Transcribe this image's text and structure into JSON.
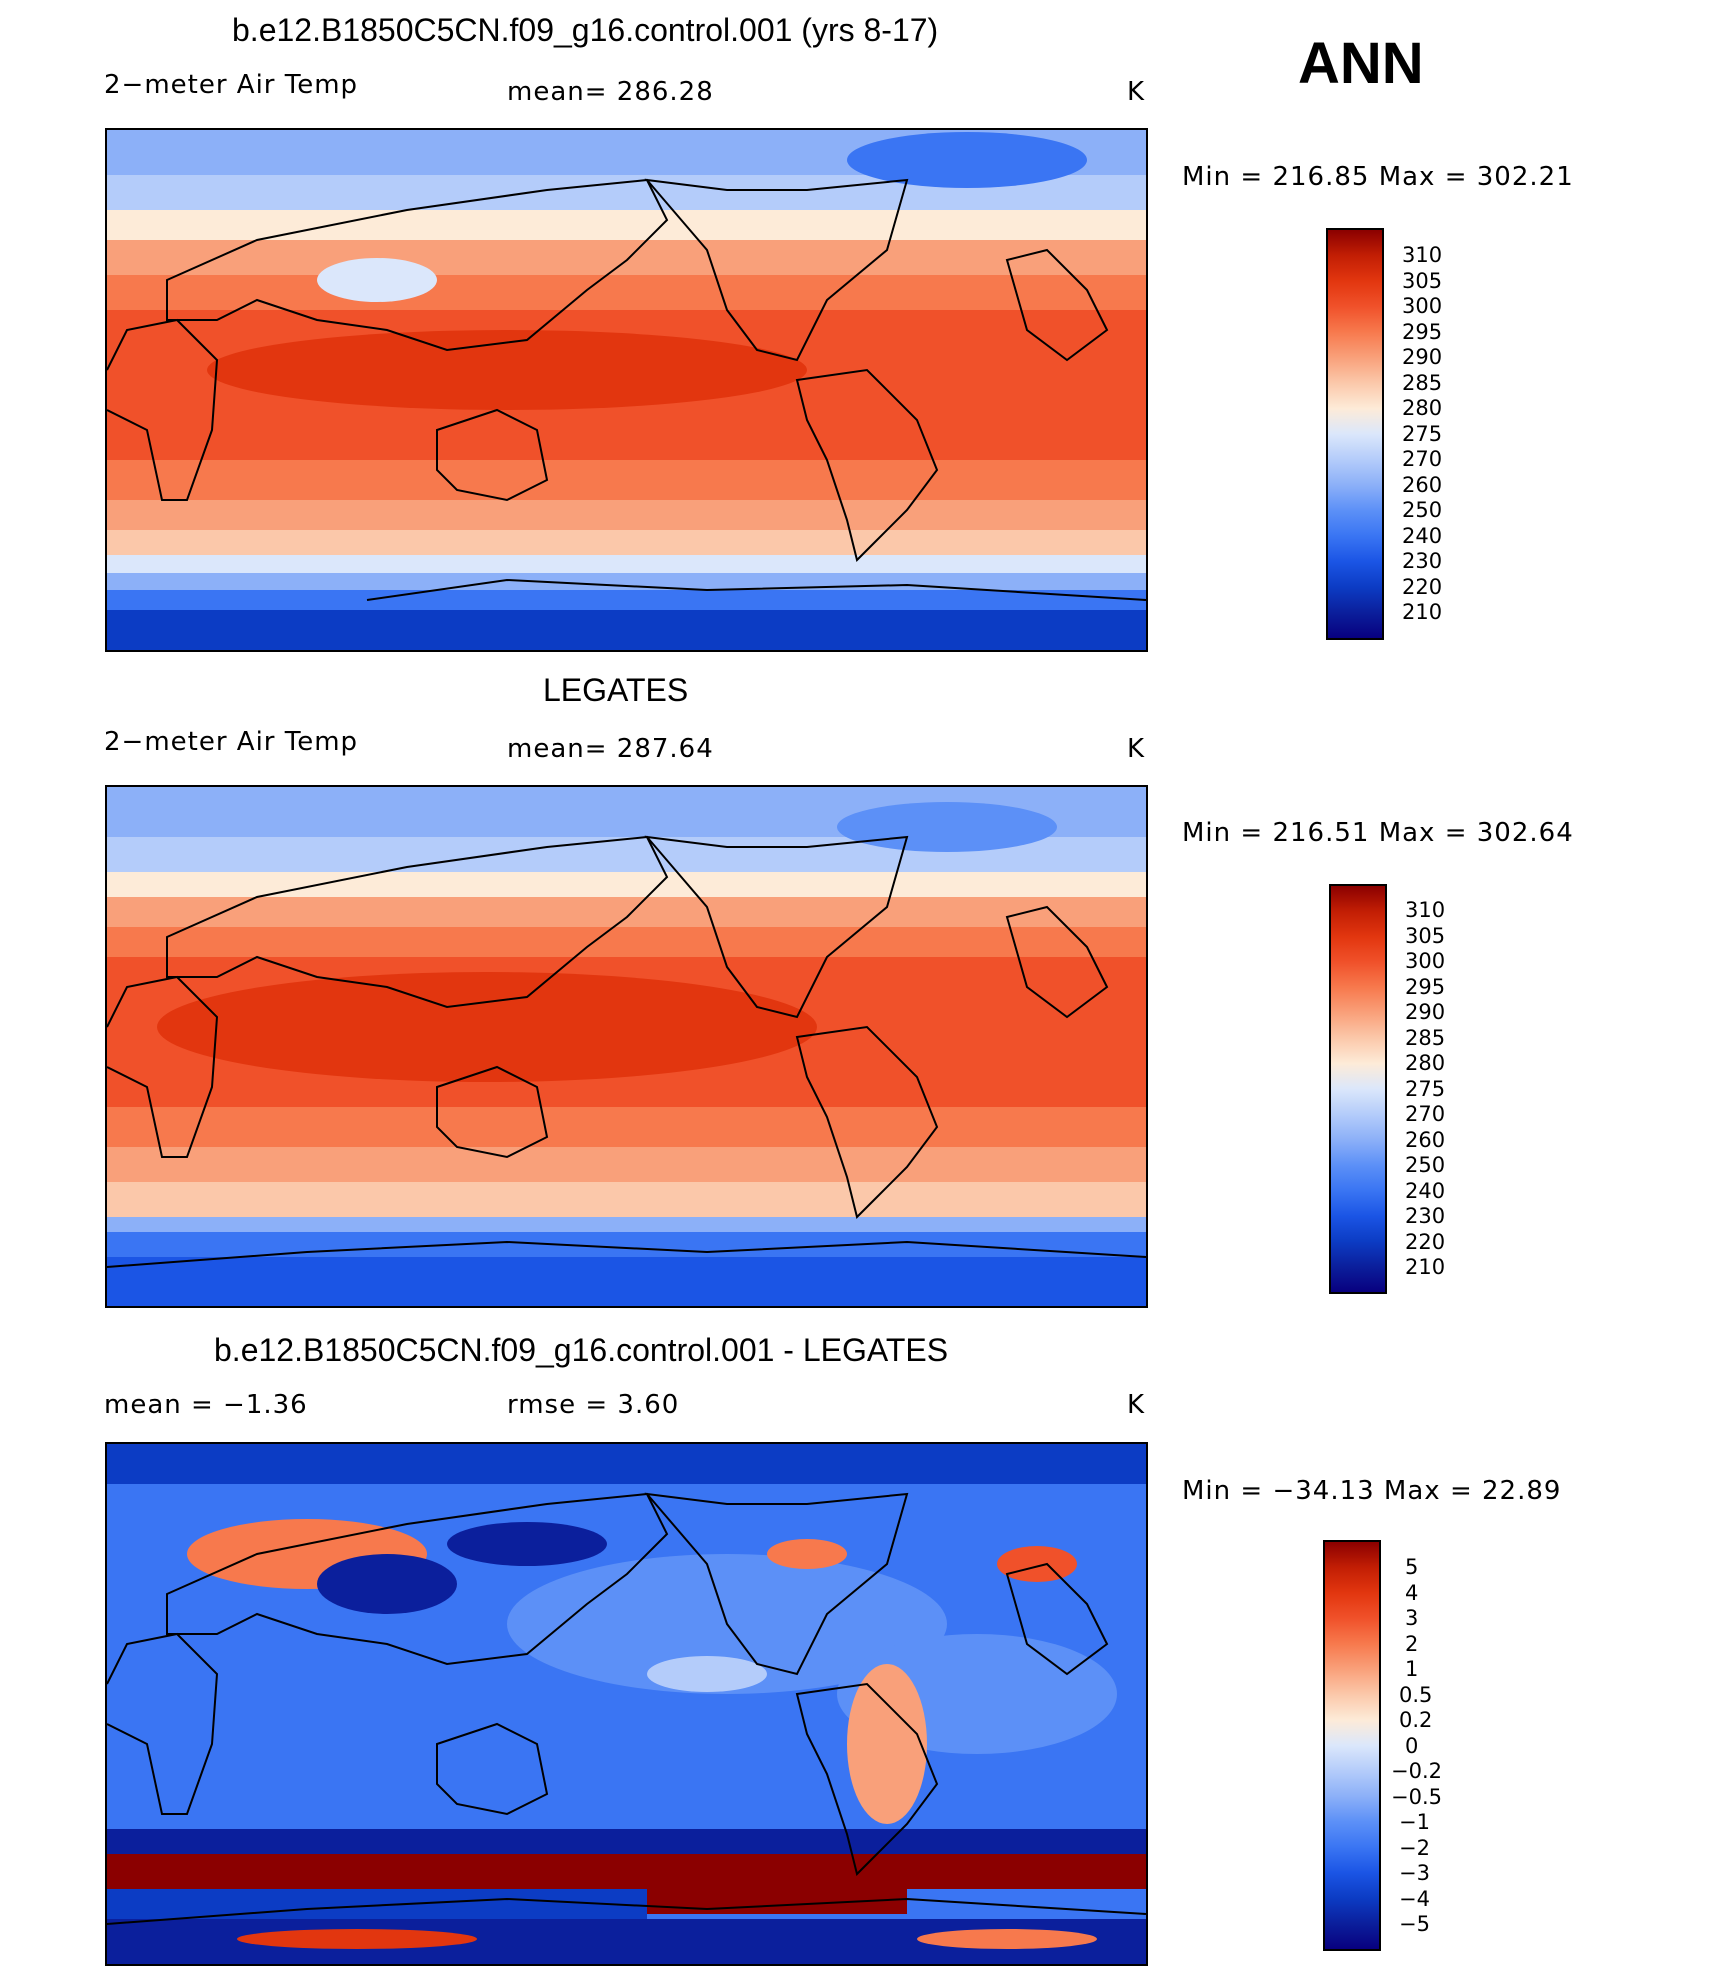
{
  "season": "ANN",
  "colors": {
    "abs_scale": [
      "#08007f",
      "#0b1f9c",
      "#0c3cc4",
      "#1b55e5",
      "#3a75f3",
      "#5c90f7",
      "#8cb0f8",
      "#b4ccfa",
      "#dbe7fb",
      "#fdebd8",
      "#fbc8aa",
      "#f9a07a",
      "#f7794d",
      "#f0512a",
      "#e2360f",
      "#c21e04",
      "#8b0000"
    ],
    "diff_scale": [
      "#08007f",
      "#0b1f9c",
      "#0c3cc4",
      "#1b55e5",
      "#3a75f3",
      "#5c90f7",
      "#8cb0f8",
      "#b4ccfa",
      "#dbe7fb",
      "#fdebd8",
      "#fbc8aa",
      "#f9a07a",
      "#f7794d",
      "#f0512a",
      "#e2360f",
      "#c21e04",
      "#8b0000"
    ]
  },
  "panels": [
    {
      "title": "b.e12.B1850C5CN.f09_g16.control.001 (yrs 8-17)",
      "left_label": "2−meter Air Temp",
      "center_label": "mean=  286.28",
      "units": "K",
      "minmax": "Min  =  216.85  Max  =  302.21",
      "colorbar_labels": [
        "310",
        "305",
        "300",
        "295",
        "290",
        "285",
        "280",
        "275",
        "270",
        "260",
        "250",
        "240",
        "230",
        "220",
        "210"
      ]
    },
    {
      "title": "LEGATES",
      "left_label": "2−meter Air Temp",
      "center_label": "mean=  287.64",
      "units": "K",
      "minmax": "Min  =  216.51  Max  =  302.64",
      "colorbar_labels": [
        "310",
        "305",
        "300",
        "295",
        "290",
        "285",
        "280",
        "275",
        "270",
        "260",
        "250",
        "240",
        "230",
        "220",
        "210"
      ]
    },
    {
      "title": "b.e12.B1850C5CN.f09_g16.control.001 - LEGATES",
      "left_label": "mean  =    −1.36",
      "center_label": "rmse  =     3.60",
      "units": "K",
      "minmax": "Min  =  −34.13  Max  =    22.89",
      "colorbar_labels": [
        "5",
        "4",
        "3",
        "2",
        "1",
        "0.5",
        "0.2",
        "0",
        "−0.2",
        "−0.5",
        "−1",
        "−2",
        "−3",
        "−4",
        "−5"
      ]
    }
  ]
}
